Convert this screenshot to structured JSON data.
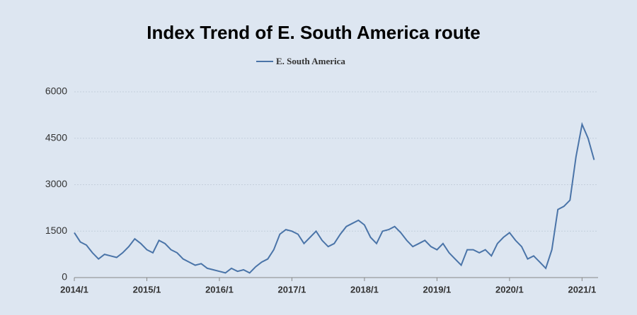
{
  "chart_data": {
    "type": "line",
    "title": "Index Trend of E. South America route",
    "x": [
      "2014/1",
      "2014/2",
      "2014/3",
      "2014/4",
      "2014/5",
      "2014/6",
      "2014/7",
      "2014/8",
      "2014/9",
      "2014/10",
      "2014/11",
      "2014/12",
      "2015/1",
      "2015/2",
      "2015/3",
      "2015/4",
      "2015/5",
      "2015/6",
      "2015/7",
      "2015/8",
      "2015/9",
      "2015/10",
      "2015/11",
      "2015/12",
      "2016/1",
      "2016/2",
      "2016/3",
      "2016/4",
      "2016/5",
      "2016/6",
      "2016/7",
      "2016/8",
      "2016/9",
      "2016/10",
      "2016/11",
      "2016/12",
      "2017/1",
      "2017/2",
      "2017/3",
      "2017/4",
      "2017/5",
      "2017/6",
      "2017/7",
      "2017/8",
      "2017/9",
      "2017/10",
      "2017/11",
      "2017/12",
      "2018/1",
      "2018/2",
      "2018/3",
      "2018/4",
      "2018/5",
      "2018/6",
      "2018/7",
      "2018/8",
      "2018/9",
      "2018/10",
      "2018/11",
      "2018/12",
      "2019/1",
      "2019/2",
      "2019/3",
      "2019/4",
      "2019/5",
      "2019/6",
      "2019/7",
      "2019/8",
      "2019/9",
      "2019/10",
      "2019/11",
      "2019/12",
      "2020/1",
      "2020/2",
      "2020/3",
      "2020/4",
      "2020/5",
      "2020/6",
      "2020/7",
      "2020/8",
      "2020/9",
      "2020/10",
      "2020/11",
      "2020/12",
      "2021/1",
      "2021/2",
      "2021/3"
    ],
    "xtick_index": [
      0,
      12,
      24,
      36,
      48,
      60,
      72,
      84
    ],
    "series": [
      {
        "name": "E. South America",
        "color": "#4a74a8",
        "values": [
          1450,
          1150,
          1050,
          800,
          600,
          750,
          700,
          650,
          800,
          1000,
          1250,
          1100,
          900,
          800,
          1200,
          1100,
          900,
          800,
          600,
          500,
          400,
          450,
          300,
          250,
          200,
          150,
          300,
          200,
          250,
          150,
          350,
          500,
          600,
          900,
          1400,
          1550,
          1500,
          1400,
          1100,
          1300,
          1500,
          1200,
          1000,
          1100,
          1400,
          1650,
          1750,
          1850,
          1700,
          1300,
          1100,
          1500,
          1550,
          1650,
          1450,
          1200,
          1000,
          1100,
          1200,
          1000,
          900,
          1100,
          800,
          600,
          400,
          900,
          900,
          800,
          900,
          700,
          1100,
          1300,
          1450,
          1200,
          1000,
          600,
          700,
          500,
          300,
          900,
          2200,
          2300,
          2500,
          3900,
          4950,
          4500,
          3800
        ]
      }
    ],
    "ylim": [
      0,
      6000
    ],
    "yticks": [
      0,
      1500,
      3000,
      4500,
      6000
    ],
    "grid": true
  }
}
